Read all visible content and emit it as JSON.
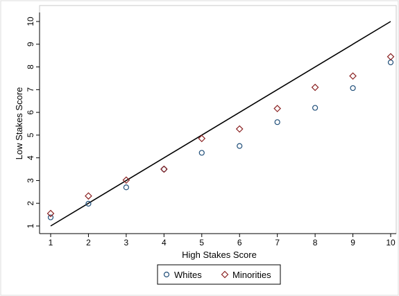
{
  "chart_data": {
    "type": "scatter",
    "xlabel": "High Stakes Score",
    "ylabel": "Low Stakes Score",
    "xlim": [
      1,
      10
    ],
    "ylim": [
      1,
      10
    ],
    "xticks": [
      "1",
      "2",
      "3",
      "4",
      "5",
      "6",
      "7",
      "8",
      "9",
      "10"
    ],
    "yticks": [
      "1",
      "2",
      "3",
      "4",
      "5",
      "6",
      "7",
      "8",
      "9",
      "10"
    ],
    "grid": false,
    "legend_position": "bottom",
    "reference_line": {
      "from": [
        1,
        1
      ],
      "to": [
        10,
        10
      ],
      "color": "#000000"
    },
    "series": [
      {
        "name": "Whites",
        "marker": "circle",
        "color": "#1f4e79",
        "x": [
          1,
          2,
          3,
          4,
          5,
          6,
          7,
          8,
          9,
          10
        ],
        "y": [
          1.38,
          1.98,
          2.7,
          3.5,
          4.22,
          4.52,
          5.57,
          6.2,
          7.07,
          8.2
        ]
      },
      {
        "name": "Minorities",
        "marker": "diamond",
        "color": "#8b2323",
        "x": [
          1,
          2,
          3,
          4,
          5,
          6,
          7,
          8,
          9,
          10
        ],
        "y": [
          1.55,
          2.32,
          3.02,
          3.5,
          4.85,
          5.27,
          6.17,
          7.1,
          7.6,
          8.45
        ]
      }
    ]
  }
}
